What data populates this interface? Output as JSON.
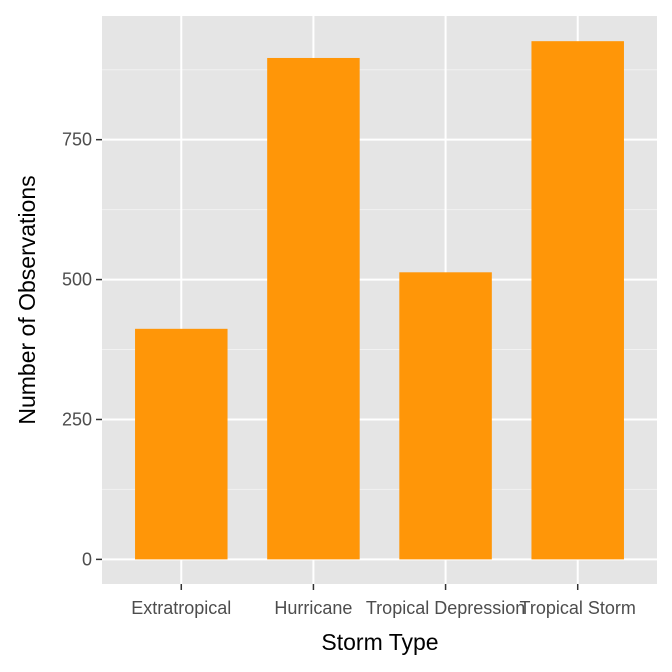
{
  "chart_data": {
    "type": "bar",
    "title": "",
    "xlabel": "Storm Type",
    "ylabel": "Number of Observations",
    "categories": [
      "Extratropical",
      "Hurricane",
      "Tropical Depression",
      "Tropical Storm"
    ],
    "values": [
      412,
      896,
      513,
      926
    ],
    "ylim": [
      -44,
      971
    ],
    "yticks": [
      0,
      250,
      500,
      750
    ],
    "grid": true,
    "legend": "none"
  },
  "colors": {
    "bar": "#ff9608",
    "panel": "#e5e5e5",
    "grid_major": "#ffffff",
    "grid_minor": "#f2f2f2",
    "tick": "#333333"
  }
}
